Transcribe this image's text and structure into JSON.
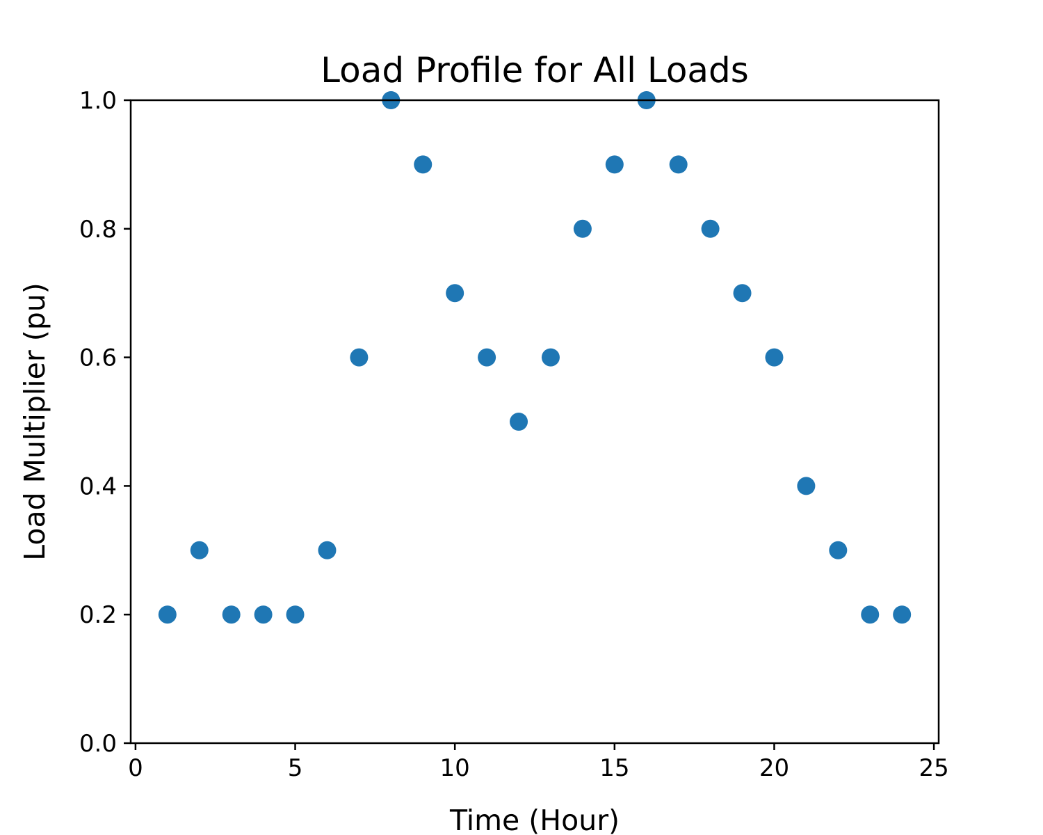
{
  "chart_data": {
    "type": "scatter",
    "title": "Load Profile for All Loads",
    "xlabel": "Time (Hour)",
    "ylabel": "Load Multiplier (pu)",
    "xlim": [
      -0.15,
      25.15
    ],
    "ylim": [
      0,
      1
    ],
    "xticks": [
      0,
      5,
      10,
      15,
      20,
      25
    ],
    "yticks": [
      0.0,
      0.2,
      0.4,
      0.6,
      0.8,
      1.0
    ],
    "xtick_labels": [
      "0",
      "5",
      "10",
      "15",
      "20",
      "25"
    ],
    "ytick_labels": [
      "0.0",
      "0.2",
      "0.4",
      "0.6",
      "0.8",
      "1.0"
    ],
    "grid": false,
    "series": [
      {
        "color": "#1f77b4",
        "x": [
          1,
          2,
          3,
          4,
          5,
          6,
          7,
          8,
          9,
          10,
          11,
          12,
          13,
          14,
          15,
          16,
          17,
          18,
          19,
          20,
          21,
          22,
          23,
          24
        ],
        "y": [
          0.2,
          0.3,
          0.2,
          0.2,
          0.2,
          0.3,
          0.6,
          1.0,
          0.9,
          0.7,
          0.6,
          0.5,
          0.6,
          0.8,
          0.9,
          1.0,
          0.9,
          0.8,
          0.7,
          0.6,
          0.4,
          0.3,
          0.2,
          0.2
        ]
      }
    ]
  }
}
